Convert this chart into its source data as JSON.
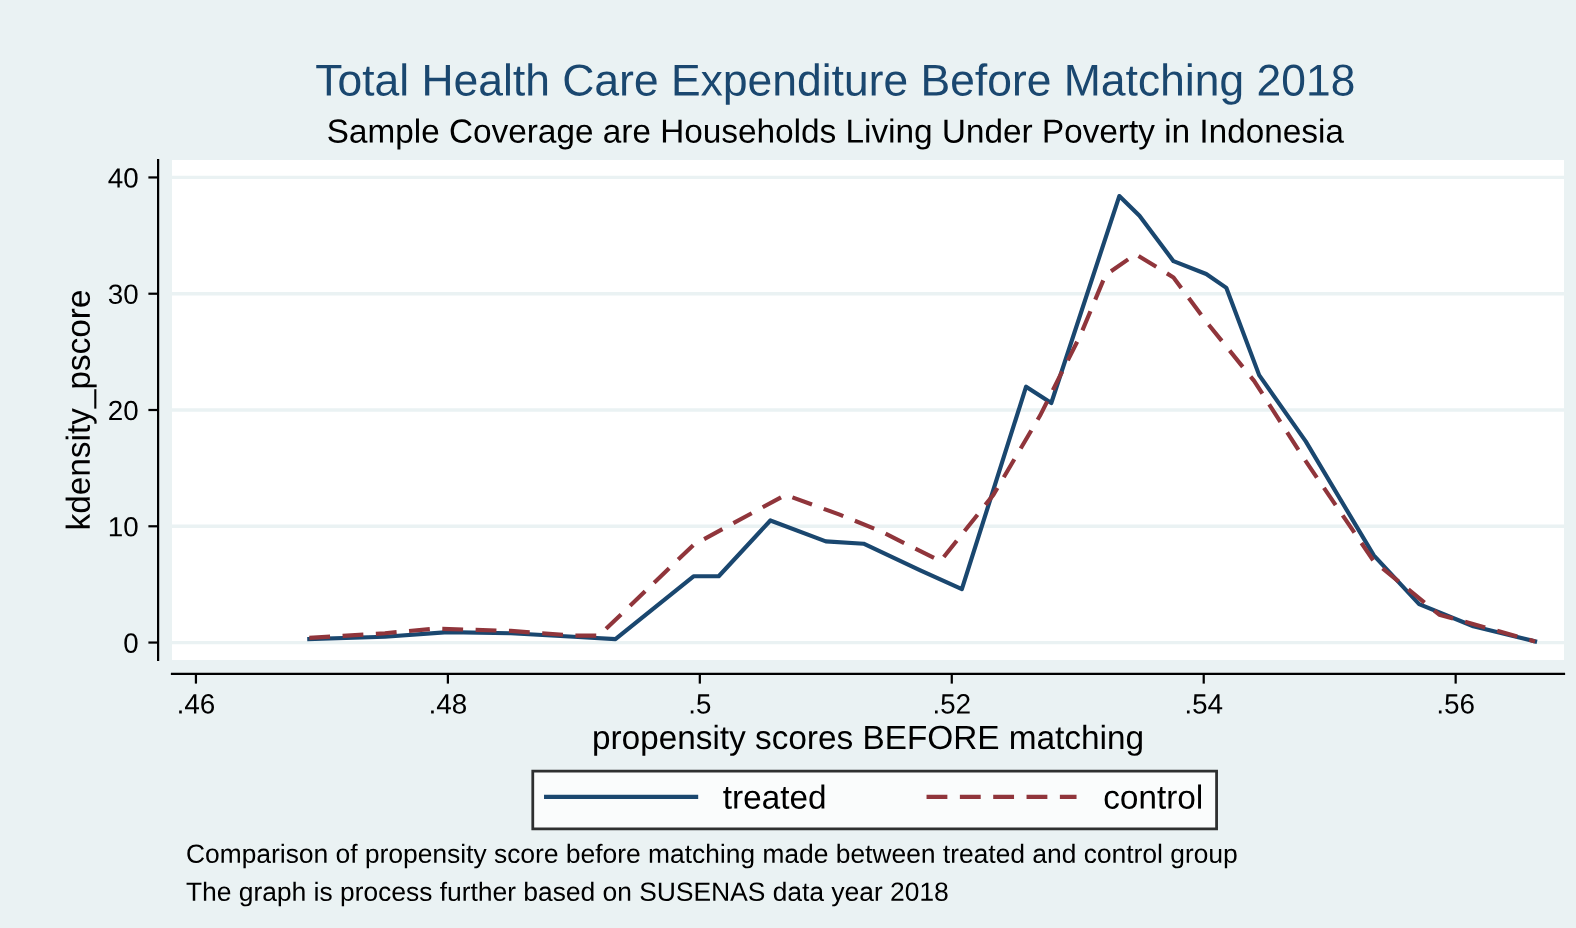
{
  "chart_data": {
    "type": "line",
    "title": "Total Health Care Expenditure Before Matching 2018",
    "subtitle": "Sample Coverage are Households Living Under Poverty in Indonesia",
    "xlabel": "propensity scores BEFORE matching",
    "ylabel": "kdensity_pscore",
    "xlim": [
      0.4581,
      0.5686
    ],
    "ylim": [
      -1.5,
      41.5
    ],
    "xticks": [
      {
        "value": 0.46,
        "label": ".46"
      },
      {
        "value": 0.48,
        "label": ".48"
      },
      {
        "value": 0.5,
        "label": ".5"
      },
      {
        "value": 0.52,
        "label": ".52"
      },
      {
        "value": 0.54,
        "label": ".54"
      },
      {
        "value": 0.56,
        "label": ".56"
      }
    ],
    "yticks": [
      0,
      10,
      20,
      30,
      40
    ],
    "grid": "y",
    "legend": "bottom",
    "series": [
      {
        "name": "treated",
        "color": "#1a476f",
        "line_style": "solid",
        "x": [
          0.469,
          0.475,
          0.48,
          0.485,
          0.49,
          0.4933,
          0.4995,
          0.5015,
          0.5056,
          0.51,
          0.513,
          0.5175,
          0.5208,
          0.5259,
          0.5279,
          0.5333,
          0.5349,
          0.5376,
          0.5402,
          0.5418,
          0.5444,
          0.5481,
          0.5535,
          0.5571,
          0.5614,
          0.5663
        ],
        "values": [
          0.3,
          0.5,
          0.9,
          0.8,
          0.5,
          0.3,
          5.7,
          5.7,
          10.5,
          8.7,
          8.5,
          6.2,
          4.6,
          22.0,
          20.6,
          38.4,
          36.7,
          32.8,
          31.7,
          30.5,
          23.0,
          17.3,
          7.5,
          3.3,
          1.4,
          0.1
        ]
      },
      {
        "name": "control",
        "color": "#90353b",
        "line_style": "dashed",
        "x": [
          0.469,
          0.475,
          0.479,
          0.485,
          0.49,
          0.492,
          0.4995,
          0.5068,
          0.5111,
          0.5143,
          0.5191,
          0.5233,
          0.527,
          0.5302,
          0.5322,
          0.5346,
          0.5376,
          0.5402,
          0.544,
          0.5481,
          0.5535,
          0.5587,
          0.5663
        ],
        "values": [
          0.4,
          0.8,
          1.2,
          1.0,
          0.6,
          0.6,
          8.4,
          12.7,
          11.0,
          9.6,
          7.0,
          12.7,
          19.5,
          26.4,
          31.6,
          33.4,
          31.4,
          27.6,
          22.5,
          15.6,
          7.0,
          2.4,
          0.1
        ]
      }
    ],
    "annotations": [
      "Comparison of propensity score before matching made between treated and control group",
      "The graph is process further based on SUSENAS data year 2018"
    ]
  }
}
